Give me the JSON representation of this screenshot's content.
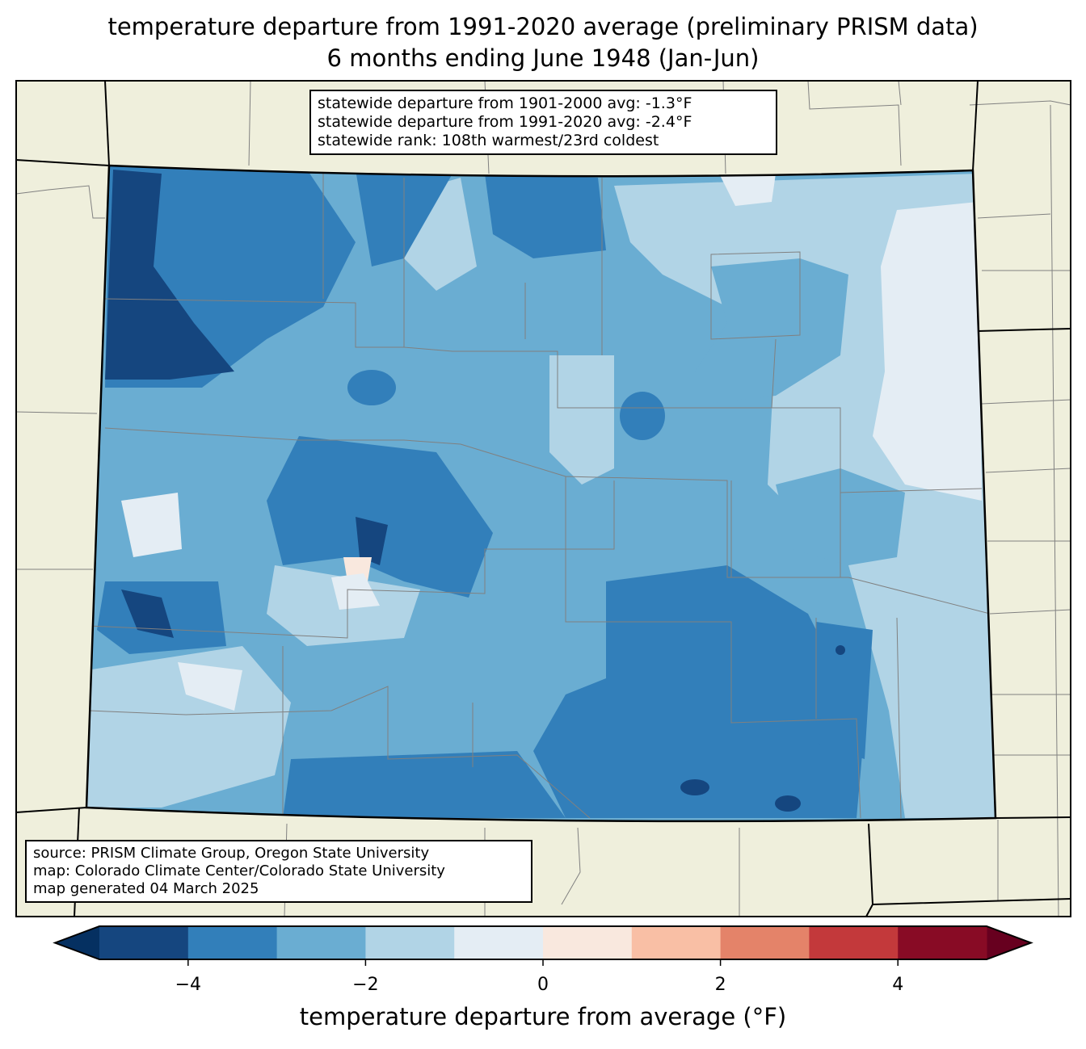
{
  "title": {
    "line1": "temperature departure from 1991-2020 average (preliminary PRISM data)",
    "line2": "6 months ending June 1948 (Jan-Jun)"
  },
  "stats_box": {
    "line1": "statewide departure from 1901-2000 avg: -1.3°F",
    "line2": "statewide departure from 1991-2020 avg: -2.4°F",
    "line3": "statewide rank: 108th warmest/23rd coldest"
  },
  "source_box": {
    "line1": "source: PRISM Climate Group, Oregon State University",
    "line2": "map: Colorado Climate Center/Colorado State University",
    "line3": "map generated 04 March 2025"
  },
  "colorbar": {
    "label": "temperature departure from average (°F)",
    "ticks": [
      "−4",
      "−2",
      "0",
      "2",
      "4"
    ],
    "tick_values": [
      -4,
      -2,
      0,
      2,
      4
    ],
    "range": [
      -5,
      5
    ],
    "under_color": "#053061",
    "over_color": "#67001f",
    "colors": [
      "#15467f",
      "#327fba",
      "#6aadd2",
      "#b1d4e6",
      "#e4edf4",
      "#f9e8de",
      "#f9bfa5",
      "#e48369",
      "#c3393b",
      "#880b25"
    ]
  },
  "colors": {
    "land": "#efefdc",
    "state_border": "#000000",
    "county_border": "#808080"
  }
}
